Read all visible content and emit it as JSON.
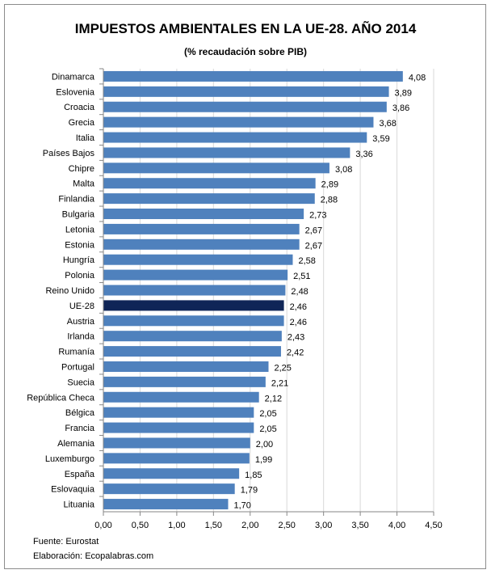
{
  "chart_data": {
    "type": "bar",
    "orientation": "horizontal",
    "title": "IMPUESTOS AMBIENTALES EN LA UE-28. AÑO 2014",
    "subtitle": "(% recaudación sobre PIB)",
    "categories": [
      "Dinamarca",
      "Eslovenia",
      "Croacia",
      "Grecia",
      "Italia",
      "Países Bajos",
      "Chipre",
      "Malta",
      "Finlandia",
      "Bulgaria",
      "Letonia",
      "Estonia",
      "Hungría",
      "Polonia",
      "Reino Unido",
      "UE-28",
      "Austria",
      "Irlanda",
      "Rumanía",
      "Portugal",
      "Suecia",
      "República Checa",
      "Bélgica",
      "Francia",
      "Alemania",
      "Luxemburgo",
      "España",
      "Eslovaquia",
      "Lituania"
    ],
    "values": [
      4.08,
      3.89,
      3.86,
      3.68,
      3.59,
      3.36,
      3.08,
      2.89,
      2.88,
      2.73,
      2.67,
      2.67,
      2.58,
      2.51,
      2.48,
      2.46,
      2.46,
      2.43,
      2.42,
      2.25,
      2.21,
      2.12,
      2.05,
      2.05,
      2.0,
      1.99,
      1.85,
      1.79,
      1.7
    ],
    "value_labels": [
      "4,08",
      "3,89",
      "3,86",
      "3,68",
      "3,59",
      "3,36",
      "3,08",
      "2,89",
      "2,88",
      "2,73",
      "2,67",
      "2,67",
      "2,58",
      "2,51",
      "2,48",
      "2,46",
      "2,46",
      "2,43",
      "2,42",
      "2,25",
      "2,21",
      "2,12",
      "2,05",
      "2,05",
      "2,00",
      "1,99",
      "1,85",
      "1,79",
      "1,70"
    ],
    "xlim": [
      0,
      4.5
    ],
    "xticks": [
      "0,00",
      "0,50",
      "1,00",
      "1,50",
      "2,00",
      "2,50",
      "3,00",
      "3,50",
      "4,00",
      "4,50"
    ],
    "grid": "vertical",
    "bar_color": "#4f81bd",
    "highlight_category": "UE-28",
    "highlight_color": "#0f2557"
  },
  "footer": {
    "source": "Fuente: Eurostat",
    "credit": "Elaboración: Ecopalabras.com"
  }
}
